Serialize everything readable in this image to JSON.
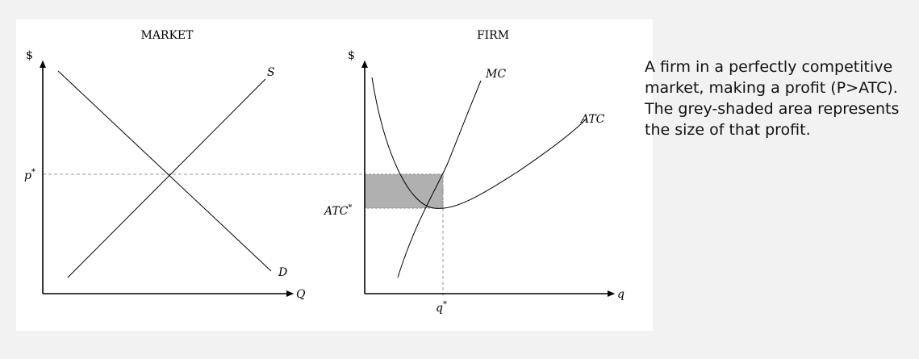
{
  "market": {
    "title": "MARKET",
    "y_axis_label": "$",
    "x_axis_label": "Q",
    "supply_label": "S",
    "demand_label": "D",
    "price_label": "p",
    "price_superscript": "*"
  },
  "firm": {
    "title": "FIRM",
    "y_axis_label": "$",
    "x_axis_label": "q",
    "mc_label": "MC",
    "atc_label": "ATC",
    "atc_star_label": "ATC",
    "atc_star_superscript": "*",
    "q_star_label": "q",
    "q_star_superscript": "*"
  },
  "caption": {
    "line1": "A firm in a perfectly competitive",
    "line2": "market, making a profit (P>ATC).",
    "line3": "The grey-shaded area represents",
    "line4": "the size of that profit."
  },
  "colors": {
    "profit_area": "#b0b0b0",
    "axis": "#000000",
    "guide_line": "#999999",
    "page_background": "#f2f2f2",
    "panel_background": "#ffffff"
  }
}
